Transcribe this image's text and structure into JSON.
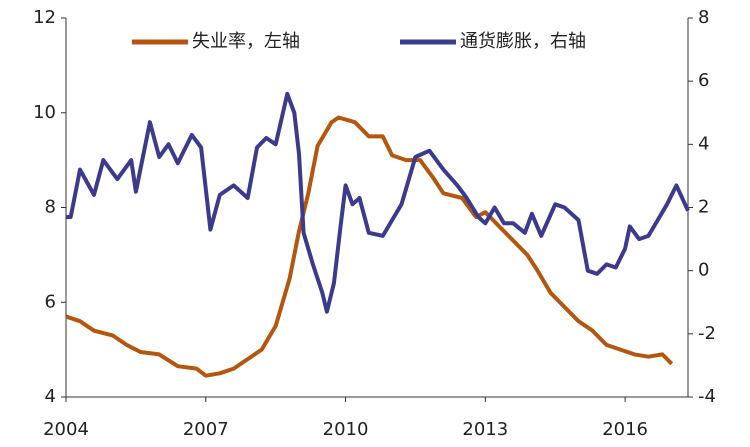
{
  "chart_data": {
    "type": "line",
    "xlim": [
      2004,
      2017.35
    ],
    "xticks": [
      2004,
      2007,
      2010,
      2013,
      2016
    ],
    "ylim": [
      4,
      12
    ],
    "yticks": [
      4,
      6,
      8,
      10,
      12
    ],
    "y2lim": [
      -4,
      8
    ],
    "y2ticks": [
      -4,
      -2,
      0,
      2,
      4,
      6,
      8
    ],
    "legend": "top",
    "series": [
      {
        "name": "失业率，左轴",
        "color": "#b5560f",
        "x": [
          2004.0,
          2004.3,
          2004.6,
          2005.0,
          2005.3,
          2005.6,
          2006.0,
          2006.4,
          2006.8,
          2007.0,
          2007.3,
          2007.6,
          2007.9,
          2008.2,
          2008.5,
          2008.8,
          2009.0,
          2009.2,
          2009.4,
          2009.7,
          2009.85,
          2010.2,
          2010.5,
          2010.8,
          2011.0,
          2011.3,
          2011.6,
          2011.9,
          2012.1,
          2012.5,
          2012.8,
          2013.0,
          2013.3,
          2013.6,
          2013.9,
          2014.1,
          2014.4,
          2014.7,
          2015.0,
          2015.3,
          2015.6,
          2015.9,
          2016.2,
          2016.5,
          2016.8,
          2017.0
        ],
        "values": [
          5.7,
          5.6,
          5.4,
          5.3,
          5.1,
          4.95,
          4.9,
          4.65,
          4.6,
          4.45,
          4.5,
          4.6,
          4.8,
          5.0,
          5.5,
          6.5,
          7.5,
          8.3,
          9.3,
          9.8,
          9.9,
          9.8,
          9.5,
          9.5,
          9.1,
          9.0,
          9.0,
          8.6,
          8.3,
          8.2,
          7.8,
          7.9,
          7.6,
          7.3,
          7.0,
          6.7,
          6.2,
          5.9,
          5.6,
          5.4,
          5.1,
          5.0,
          4.9,
          4.85,
          4.9,
          4.7
        ]
      },
      {
        "name": "通货膨胀，右轴",
        "color": "#3b3a8f",
        "axis": "y2",
        "x": [
          2004.0,
          2004.1,
          2004.3,
          2004.6,
          2004.8,
          2005.1,
          2005.4,
          2005.5,
          2005.8,
          2006.0,
          2006.2,
          2006.4,
          2006.7,
          2006.9,
          2007.1,
          2007.3,
          2007.6,
          2007.9,
          2008.1,
          2008.3,
          2008.5,
          2008.75,
          2008.9,
          2009.0,
          2009.1,
          2009.3,
          2009.5,
          2009.6,
          2009.75,
          2009.9,
          2010.0,
          2010.15,
          2010.3,
          2010.5,
          2010.8,
          2011.0,
          2011.2,
          2011.5,
          2011.8,
          2012.1,
          2012.4,
          2012.6,
          2012.85,
          2013.0,
          2013.2,
          2013.4,
          2013.6,
          2013.85,
          2014.0,
          2014.2,
          2014.5,
          2014.7,
          2015.0,
          2015.2,
          2015.4,
          2015.6,
          2015.8,
          2016.0,
          2016.1,
          2016.3,
          2016.5,
          2016.7,
          2016.9,
          2017.1,
          2017.35
        ],
        "values": [
          1.7,
          1.7,
          3.2,
          2.4,
          3.5,
          2.9,
          3.5,
          2.5,
          4.7,
          3.6,
          4.0,
          3.4,
          4.3,
          3.9,
          1.3,
          2.4,
          2.7,
          2.3,
          3.9,
          4.2,
          4.0,
          5.6,
          5.0,
          3.7,
          1.2,
          0.2,
          -0.7,
          -1.3,
          -0.4,
          1.5,
          2.7,
          2.1,
          2.3,
          1.2,
          1.1,
          1.6,
          2.1,
          3.6,
          3.8,
          3.2,
          2.7,
          2.3,
          1.7,
          1.5,
          2.0,
          1.5,
          1.5,
          1.2,
          1.8,
          1.1,
          2.1,
          2.0,
          1.6,
          0.0,
          -0.1,
          0.2,
          0.1,
          0.7,
          1.4,
          1.0,
          1.1,
          1.6,
          2.1,
          2.7,
          1.9
        ]
      }
    ]
  }
}
